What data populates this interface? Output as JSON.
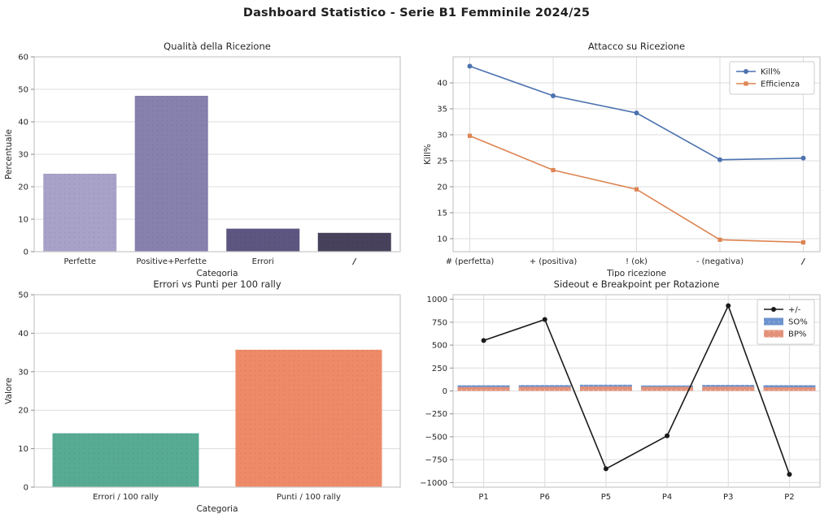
{
  "page": {
    "title": "Dashboard Statistico - Serie B1 Femminile 2024/25"
  },
  "style": {
    "background": "#ffffff",
    "grid": "#dcdcdc",
    "spine": "#c9c9c9",
    "tick": "#8a8a8a",
    "text": "#262626"
  },
  "chart_data": [
    {
      "id": "qualita-ricezione",
      "type": "bar",
      "title": "Qualità della Ricezione",
      "xlabel": "Categoria",
      "ylabel": "Percentuale",
      "categories": [
        "Perfette",
        "Positive+Perfette",
        "Errori",
        "/"
      ],
      "values": [
        24,
        48,
        7.1,
        5.8
      ],
      "bar_colors": [
        "#a8a2c8",
        "#8781ae",
        "#5d5680",
        "#47415b"
      ],
      "ylim": [
        0,
        60
      ],
      "yticks": [
        0,
        10,
        20,
        30,
        40,
        50,
        60
      ],
      "grid": "horizontal",
      "hatch": "dots"
    },
    {
      "id": "attacco-su-ricezione",
      "type": "line",
      "title": "Attacco su Ricezione",
      "xlabel": "Tipo ricezione",
      "ylabel": "Kill%",
      "categories": [
        "# (perfetta)",
        "+ (positiva)",
        "! (ok)",
        "- (negativa)",
        "/"
      ],
      "series": [
        {
          "name": "Kill%",
          "values": [
            43.2,
            37.5,
            34.2,
            25.2,
            25.5
          ],
          "color": "#4c72b0",
          "marker": "circle"
        },
        {
          "name": "Efficienza",
          "values": [
            29.8,
            23.2,
            19.5,
            9.8,
            9.3
          ],
          "color": "#dd8452",
          "marker": "square"
        }
      ],
      "ylim": [
        7.5,
        45
      ],
      "yticks": [
        10,
        15,
        20,
        25,
        30,
        35,
        40
      ],
      "grid": "both",
      "legend": "top-right"
    },
    {
      "id": "errori-vs-punti",
      "type": "bar",
      "title": "Errori vs Punti per 100 rally",
      "xlabel": "Categoria",
      "ylabel": "Valore",
      "categories": [
        "Errori / 100 rally",
        "Punti / 100 rally"
      ],
      "values": [
        14,
        35.7
      ],
      "bar_colors": [
        "#57ab93",
        "#ee8a68"
      ],
      "ylim": [
        0,
        50
      ],
      "yticks": [
        0,
        10,
        20,
        30,
        40,
        50
      ],
      "grid": "horizontal",
      "hatch": "dots"
    },
    {
      "id": "sideout-breakpoint",
      "type": "mixed",
      "title": "Sideout e Breakpoint per Rotazione",
      "xlabel": "",
      "ylabel": "",
      "categories": [
        "P1",
        "P6",
        "P5",
        "P4",
        "P3",
        "P2"
      ],
      "bar_series": [
        {
          "name": "SO%",
          "values": [
            62,
            64,
            68,
            60,
            66,
            63
          ],
          "color": "#6d93ce"
        },
        {
          "name": "BP%",
          "values": [
            42,
            44,
            48,
            45,
            46,
            40
          ],
          "color": "#e39179"
        }
      ],
      "line_series": {
        "name": "+/-",
        "values": [
          550,
          780,
          -850,
          -490,
          930,
          -910
        ],
        "color": "#1a1a1a",
        "marker": "circle"
      },
      "ylim": [
        -1050,
        1050
      ],
      "yticks": [
        -1000,
        -750,
        -500,
        -250,
        0,
        250,
        500,
        750,
        1000
      ],
      "grid": "both",
      "legend": "top-right",
      "hatch": "dots-light"
    }
  ]
}
